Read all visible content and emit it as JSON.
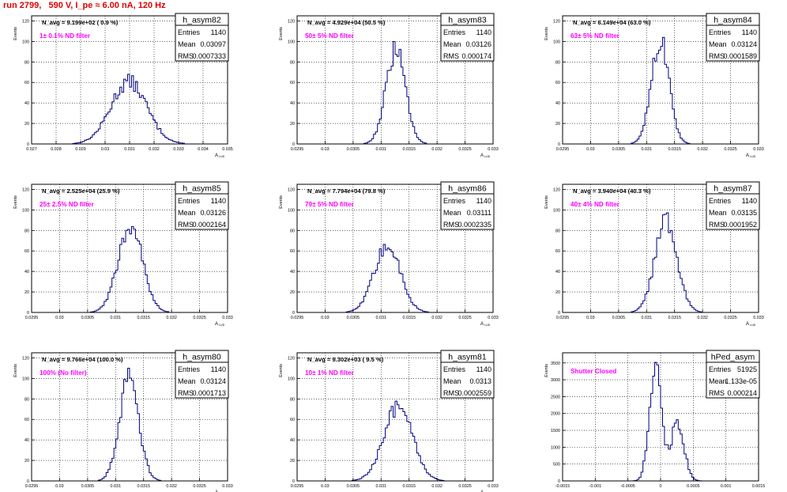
{
  "title": "run 2799,   590 V, I_pe ≈ 6.00 nA, 120 Hz",
  "colors": {
    "title": "#e00000",
    "annotation": "#ff00ff",
    "histogram": "#000080",
    "axis": "#000000",
    "grid": "#000000"
  },
  "chart_data": [
    {
      "type": "histogram",
      "name": "h_asym82",
      "stats": {
        "Entries": "1140",
        "Mean": "0.03097",
        "RMS": "0.0007333"
      },
      "header": "N_avg = 9.199e+02 ( 0.9 %)",
      "annotation": "1± 0.1% ND filter",
      "xlabel": "A",
      "xlabel_sub": "LUD",
      "ylabel": "Events",
      "xlim": [
        0.027,
        0.035
      ],
      "ylim": [
        0,
        125
      ],
      "xticks": [
        0.027,
        0.028,
        0.029,
        0.03,
        0.031,
        0.032,
        0.033,
        0.034,
        0.035
      ],
      "xtick_labels": [
        "0.027",
        "0.028",
        "0.029",
        "0.03",
        "0.031",
        "0.032",
        "0.033",
        "0.034",
        "0.035"
      ],
      "yticks": [
        0,
        20,
        40,
        60,
        80,
        100,
        120
      ],
      "ytick_labels": [
        "0",
        "20",
        "40",
        "60",
        "80",
        "100",
        "120"
      ],
      "grid": true,
      "mean": 0.03097,
      "rms": 0.0007333,
      "peak": 62
    },
    {
      "type": "histogram",
      "name": "h_asym83",
      "stats": {
        "Entries": "1140",
        "Mean": "0.03126",
        "RMS": "0.000174"
      },
      "header": "N_avg = 4.929e+04 (50.5 %)",
      "annotation": "50± 5% ND filter",
      "xlabel": "A",
      "xlabel_sub": "LUD",
      "ylabel": "Events",
      "xlim": [
        0.0295,
        0.033
      ],
      "ylim": [
        0,
        125
      ],
      "xticks": [
        0.0295,
        0.03,
        0.0305,
        0.031,
        0.0315,
        0.032,
        0.0325,
        0.033
      ],
      "xtick_labels": [
        "0.0295",
        "0.03",
        "0.0305",
        "0.031",
        "0.0315",
        "0.032",
        "0.0325",
        "0.033"
      ],
      "yticks": [
        0,
        20,
        40,
        60,
        80,
        100,
        120
      ],
      "ytick_labels": [
        "0",
        "20",
        "40",
        "60",
        "80",
        "100",
        "120"
      ],
      "grid": true,
      "mean": 0.03126,
      "rms": 0.000174,
      "peak": 93
    },
    {
      "type": "histogram",
      "name": "h_asym84",
      "stats": {
        "Entries": "1140",
        "Mean": "0.03124",
        "RMS": "0.0001589"
      },
      "header": "N_avg = 6.149e+04 (63.0 %)",
      "annotation": "63± 5% ND filter",
      "xlabel": "A",
      "xlabel_sub": "LUD",
      "ylabel": "Events",
      "xlim": [
        0.0295,
        0.033
      ],
      "ylim": [
        0,
        125
      ],
      "xticks": [
        0.0295,
        0.03,
        0.0305,
        0.031,
        0.0315,
        0.032,
        0.0325,
        0.033
      ],
      "xtick_labels": [
        "0.0295",
        "0.03",
        "0.0305",
        "0.031",
        "0.0315",
        "0.032",
        "0.0325",
        "0.033"
      ],
      "yticks": [
        0,
        20,
        40,
        60,
        80,
        100,
        120
      ],
      "ytick_labels": [
        "0",
        "20",
        "40",
        "60",
        "80",
        "100",
        "120"
      ],
      "grid": true,
      "mean": 0.03124,
      "rms": 0.0001589,
      "peak": 103
    },
    {
      "type": "histogram",
      "name": "h_asym85",
      "stats": {
        "Entries": "1140",
        "Mean": "0.03126",
        "RMS": "0.0002164"
      },
      "header": "N_avg = 2.525e+04 (25.9 %)",
      "annotation": "25± 2.5% ND filter",
      "xlabel": "A",
      "xlabel_sub": "LUD",
      "ylabel": "Events",
      "xlim": [
        0.0295,
        0.033
      ],
      "ylim": [
        0,
        125
      ],
      "xticks": [
        0.0295,
        0.03,
        0.0305,
        0.031,
        0.0315,
        0.032,
        0.0325,
        0.033
      ],
      "xtick_labels": [
        "0.0295",
        "0.03",
        "0.0305",
        "0.031",
        "0.0315",
        "0.032",
        "0.0325",
        "0.033"
      ],
      "yticks": [
        0,
        20,
        40,
        60,
        80,
        100,
        120
      ],
      "ytick_labels": [
        "0",
        "20",
        "40",
        "60",
        "80",
        "100",
        "120"
      ],
      "grid": true,
      "mean": 0.03126,
      "rms": 0.0002164,
      "peak": 87
    },
    {
      "type": "histogram",
      "name": "h_asym86",
      "stats": {
        "Entries": "1140",
        "Mean": "0.03111",
        "RMS": "0.0002335"
      },
      "header": "N_avg = 7.794e+04 (79.8 %)",
      "annotation": "79± 5% ND filter",
      "xlabel": "A",
      "xlabel_sub": "LUD",
      "ylabel": "Events",
      "xlim": [
        0.0295,
        0.033
      ],
      "ylim": [
        0,
        125
      ],
      "xticks": [
        0.0295,
        0.03,
        0.0305,
        0.031,
        0.0315,
        0.032,
        0.0325,
        0.033
      ],
      "xtick_labels": [
        "0.0295",
        "0.03",
        "0.0305",
        "0.031",
        "0.0315",
        "0.032",
        "0.0325",
        "0.033"
      ],
      "yticks": [
        0,
        20,
        40,
        60,
        80,
        100,
        120
      ],
      "ytick_labels": [
        "0",
        "20",
        "40",
        "60",
        "80",
        "100",
        "120"
      ],
      "grid": true,
      "mean": 0.03111,
      "rms": 0.0002335,
      "peak": 66
    },
    {
      "type": "histogram",
      "name": "h_asym87",
      "stats": {
        "Entries": "1140",
        "Mean": "0.03135",
        "RMS": "0.0001952"
      },
      "header": "N_avg = 3.940e+04 (40.3 %)",
      "annotation": "40± 4% ND filter",
      "xlabel": "A",
      "xlabel_sub": "LUD",
      "ylabel": "Events",
      "xlim": [
        0.0295,
        0.033
      ],
      "ylim": [
        0,
        125
      ],
      "xticks": [
        0.0295,
        0.03,
        0.0305,
        0.031,
        0.0315,
        0.032,
        0.0325,
        0.033
      ],
      "xtick_labels": [
        "0.0295",
        "0.03",
        "0.0305",
        "0.031",
        "0.0315",
        "0.032",
        "0.0325",
        "0.033"
      ],
      "yticks": [
        0,
        20,
        40,
        60,
        80,
        100,
        120
      ],
      "ytick_labels": [
        "0",
        "20",
        "40",
        "60",
        "80",
        "100",
        "120"
      ],
      "grid": true,
      "mean": 0.03135,
      "rms": 0.0001952,
      "peak": 92
    },
    {
      "type": "histogram",
      "name": "h_asym80",
      "stats": {
        "Entries": "1140",
        "Mean": "0.03124",
        "RMS": "0.0001713"
      },
      "header": "N_avg = 9.766e+04 (100.0 %)",
      "annotation": "100% (No filter)",
      "xlabel": "A",
      "xlabel_sub": "LUD",
      "ylabel": "Events",
      "xlim": [
        0.0295,
        0.033
      ],
      "ylim": [
        0,
        125
      ],
      "xticks": [
        0.0295,
        0.03,
        0.0305,
        0.031,
        0.0315,
        0.032,
        0.0325,
        0.033
      ],
      "xtick_labels": [
        "0.0295",
        "0.03",
        "0.0305",
        "0.031",
        "0.0315",
        "0.032",
        "0.0325",
        "0.033"
      ],
      "yticks": [
        0,
        20,
        40,
        60,
        80,
        100,
        120
      ],
      "ytick_labels": [
        "0",
        "20",
        "40",
        "60",
        "80",
        "100",
        "120"
      ],
      "grid": true,
      "mean": 0.03124,
      "rms": 0.0001713,
      "peak": 104
    },
    {
      "type": "histogram",
      "name": "h_asym81",
      "stats": {
        "Entries": "1140",
        "Mean": "0.0313",
        "RMS": "0.0002559"
      },
      "header": "N_avg = 9.302e+03 ( 9.5 %)",
      "annotation": "10± 1% ND filter",
      "xlabel": "A",
      "xlabel_sub": "LUD",
      "ylabel": "Events",
      "xlim": [
        0.0295,
        0.033
      ],
      "ylim": [
        0,
        125
      ],
      "xticks": [
        0.0295,
        0.03,
        0.0305,
        0.031,
        0.0315,
        0.032,
        0.0325,
        0.033
      ],
      "xtick_labels": [
        "0.0295",
        "0.03",
        "0.0305",
        "0.031",
        "0.0315",
        "0.032",
        "0.0325",
        "0.033"
      ],
      "yticks": [
        0,
        20,
        40,
        60,
        80,
        100,
        120
      ],
      "ytick_labels": [
        "0",
        "20",
        "40",
        "60",
        "80",
        "100",
        "120"
      ],
      "grid": true,
      "mean": 0.0313,
      "rms": 0.0002559,
      "peak": 74
    },
    {
      "type": "histogram",
      "name": "hPed_asym",
      "stats": {
        "Entries": "51925",
        "Mean": "1.133e-05",
        "RMS": "0.000214"
      },
      "header": "",
      "annotation": "Shutter Closed",
      "xlabel": "",
      "xlabel_sub": "",
      "ylabel": "Events",
      "xlim": [
        -0.0015,
        0.0015
      ],
      "ylim": [
        0,
        3800
      ],
      "xticks": [
        -0.0015,
        -0.001,
        -0.0005,
        0,
        0.0005,
        0.001,
        0.0015
      ],
      "xtick_labels": [
        "-0.0015",
        "-0.001",
        "-0.0005",
        "0",
        "0.0005",
        "0.001",
        "0.0015"
      ],
      "yticks": [
        0,
        500,
        1000,
        1500,
        2000,
        2500,
        3000,
        3500
      ],
      "ytick_labels": [
        "0",
        "500",
        "1000",
        "1500",
        "2000",
        "2500",
        "3000",
        "3500"
      ],
      "grid": true,
      "bimodal": true,
      "components": [
        {
          "center": -8e-05,
          "sigma": 9e-05,
          "peak": 3620
        },
        {
          "center": 0.00026,
          "sigma": 0.0001,
          "peak": 1780
        }
      ]
    }
  ]
}
